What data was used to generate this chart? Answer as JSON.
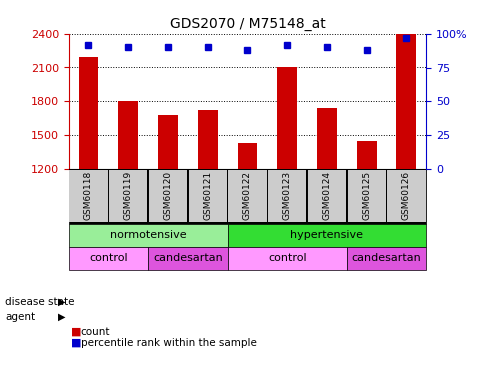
{
  "title": "GDS2070 / M75148_at",
  "samples": [
    "GSM60118",
    "GSM60119",
    "GSM60120",
    "GSM60121",
    "GSM60122",
    "GSM60123",
    "GSM60124",
    "GSM60125",
    "GSM60126"
  ],
  "count_values": [
    2190,
    1800,
    1680,
    1720,
    1430,
    2105,
    1740,
    1450,
    2400
  ],
  "percentile_values": [
    92,
    90,
    90,
    90,
    88,
    92,
    90,
    88,
    97
  ],
  "ylim_left": [
    1200,
    2400
  ],
  "ylim_right": [
    0,
    100
  ],
  "yticks_left": [
    1200,
    1500,
    1800,
    2100,
    2400
  ],
  "yticks_right": [
    0,
    25,
    50,
    75,
    100
  ],
  "bar_color": "#CC0000",
  "dot_color": "#0000CC",
  "disease_state_groups": [
    {
      "label": "normotensive",
      "start": 0,
      "end": 4,
      "color": "#99EE99"
    },
    {
      "label": "hypertensive",
      "start": 4,
      "end": 9,
      "color": "#33DD33"
    }
  ],
  "agent_groups": [
    {
      "label": "control",
      "start": 0,
      "end": 2,
      "color": "#FF99FF"
    },
    {
      "label": "candesartan",
      "start": 2,
      "end": 4,
      "color": "#DD55DD"
    },
    {
      "label": "control",
      "start": 4,
      "end": 7,
      "color": "#FF99FF"
    },
    {
      "label": "candesartan",
      "start": 7,
      "end": 9,
      "color": "#DD55DD"
    }
  ],
  "tick_label_bg": "#cccccc",
  "left_label_color": "#CC0000",
  "right_label_color": "#0000CC",
  "background_color": "#ffffff"
}
